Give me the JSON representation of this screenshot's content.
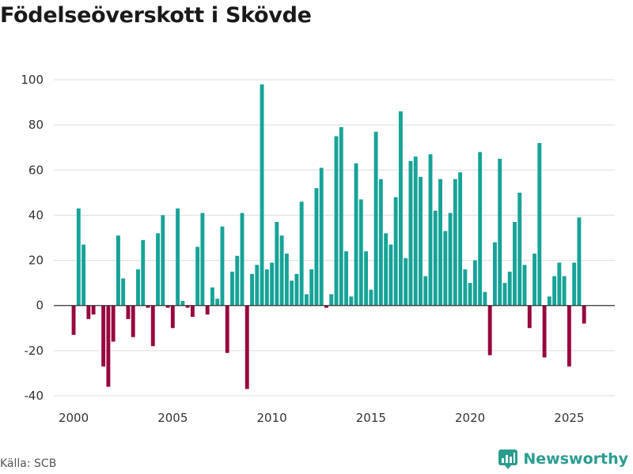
{
  "title": "Födelseöverskott i Skövde",
  "source": "Källa: SCB",
  "brand": "Newsworthy",
  "colors": {
    "positive": "#17a398",
    "negative": "#98063f",
    "grid": "#dddddd",
    "zero": "#333333",
    "brand": "#2a9d8f"
  },
  "chart_data": {
    "type": "bar",
    "title": "Födelseöverskott i Skövde",
    "xlabel": "",
    "ylabel": "",
    "frequency": "quarterly",
    "x_start": 2000.0,
    "xlim": [
      1999,
      2027.3
    ],
    "ylim": [
      -40,
      100
    ],
    "x_ticks": [
      2000,
      2005,
      2010,
      2015,
      2020,
      2025
    ],
    "y_ticks": [
      -40,
      -20,
      0,
      20,
      40,
      60,
      80,
      100
    ],
    "values": [
      -13,
      43,
      27,
      -6,
      -4,
      0,
      -27,
      -36,
      -16,
      31,
      12,
      -6,
      -14,
      16,
      29,
      -1,
      -18,
      32,
      40,
      -1,
      -10,
      43,
      2,
      -1,
      -5,
      26,
      41,
      -4,
      8,
      3,
      35,
      -21,
      15,
      22,
      41,
      -37,
      14,
      18,
      98,
      16,
      19,
      37,
      31,
      23,
      11,
      14,
      46,
      5,
      16,
      52,
      61,
      -1,
      5,
      75,
      79,
      24,
      4,
      63,
      47,
      24,
      7,
      77,
      56,
      32,
      27,
      48,
      86,
      21,
      64,
      66,
      57,
      13,
      67,
      42,
      56,
      33,
      41,
      56,
      59,
      16,
      10,
      20,
      68,
      6,
      -22,
      28,
      65,
      10,
      15,
      37,
      50,
      18,
      -10,
      23,
      72,
      -23,
      4,
      13,
      19,
      13,
      -27,
      19,
      39,
      -8
    ]
  }
}
